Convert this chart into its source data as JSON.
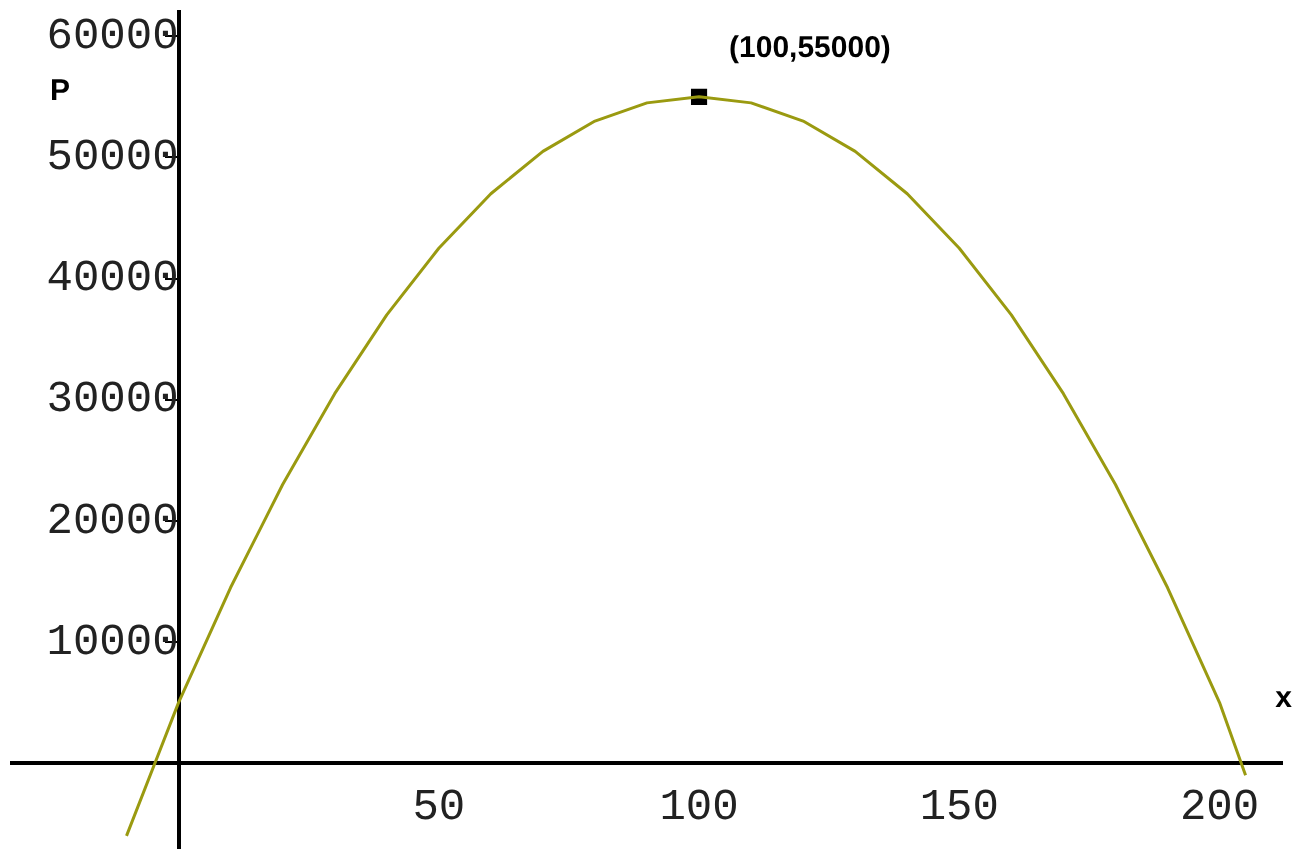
{
  "chart_data": {
    "type": "line",
    "xlabel": "x",
    "ylabel": "P",
    "series": [
      {
        "color": "#9a9a10",
        "x": [
          -10,
          0,
          10,
          20,
          30,
          40,
          50,
          60,
          70,
          80,
          90,
          100,
          110,
          120,
          130,
          140,
          150,
          160,
          170,
          180,
          190,
          200,
          205
        ],
        "values": [
          -6000,
          5000,
          14500,
          23000,
          30500,
          37000,
          42500,
          47000,
          50500,
          53000,
          54500,
          55000,
          54500,
          53000,
          50500,
          47000,
          42500,
          37000,
          30500,
          23000,
          14500,
          5000,
          -1000
        ]
      },
      {
        "type": "scatter",
        "color": "#000000",
        "x": [
          100
        ],
        "values": [
          55000
        ],
        "marker": "square"
      }
    ],
    "annotations": [
      {
        "text": "(100,55000)",
        "x": 100,
        "y": 55000
      }
    ],
    "xlim": [
      -32,
      212
    ],
    "ylim": [
      -7000,
      62000
    ],
    "xticks": [
      50,
      100,
      150,
      200
    ],
    "yticks": [
      10000,
      20000,
      30000,
      40000,
      50000,
      60000
    ],
    "grid": false,
    "legend": false
  }
}
